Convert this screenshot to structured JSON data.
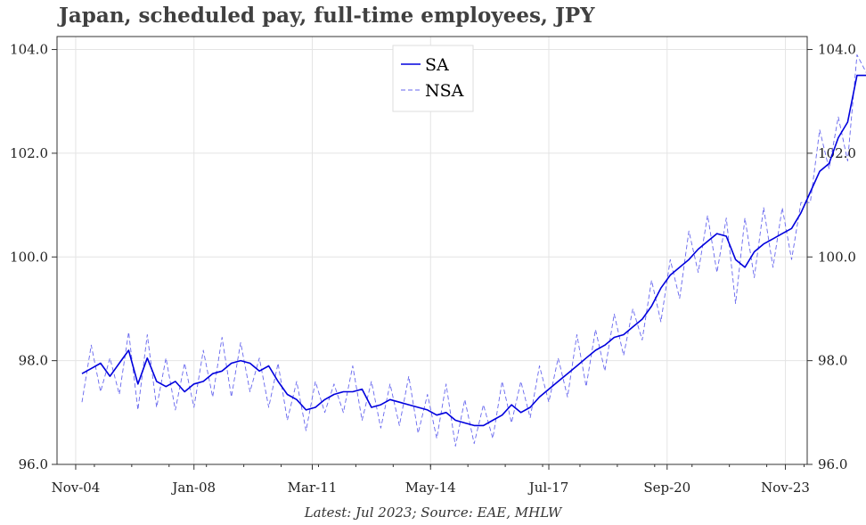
{
  "title": "Japan, scheduled pay, full-time employees, JPY",
  "footnote": "Latest: Jul 2023; Source: EAE, MHLW",
  "chart_data": {
    "type": "line",
    "title": "Japan, scheduled pay, full-time employees, JPY",
    "xlabel": "",
    "ylabel": "",
    "x_ticks": [
      "Nov-04",
      "Jan-08",
      "Mar-11",
      "May-14",
      "Jul-17",
      "Sep-20",
      "Nov-23"
    ],
    "y_ticks": [
      "96.0",
      "98.0",
      "100.0",
      "102.0",
      "104.0"
    ],
    "ylim": [
      96.0,
      104.25
    ],
    "xlim": [
      "2004-05",
      "2024-06"
    ],
    "grid": true,
    "legend_position": "top-center",
    "x_start": "2005-01",
    "x_step_months": 3,
    "series": [
      {
        "name": "SA",
        "color": "#0000dd",
        "style": "solid",
        "values": [
          97.75,
          97.85,
          97.95,
          97.7,
          97.95,
          98.2,
          97.55,
          98.05,
          97.6,
          97.5,
          97.6,
          97.4,
          97.55,
          97.6,
          97.75,
          97.8,
          97.95,
          98.0,
          97.95,
          97.8,
          97.9,
          97.6,
          97.35,
          97.25,
          97.05,
          97.1,
          97.25,
          97.35,
          97.4,
          97.4,
          97.45,
          97.1,
          97.15,
          97.25,
          97.2,
          97.15,
          97.1,
          97.05,
          96.95,
          97.0,
          96.85,
          96.8,
          96.75,
          96.75,
          96.85,
          96.95,
          97.15,
          97.0,
          97.1,
          97.3,
          97.45,
          97.6,
          97.75,
          97.9,
          98.05,
          98.2,
          98.3,
          98.45,
          98.5,
          98.65,
          98.8,
          99.05,
          99.4,
          99.65,
          99.8,
          99.95,
          100.15,
          100.3,
          100.45,
          100.4,
          99.95,
          99.8,
          100.1,
          100.25,
          100.35,
          100.45,
          100.55,
          100.85,
          101.25,
          101.65,
          101.8,
          102.3,
          102.6,
          103.5,
          103.5
        ]
      },
      {
        "name": "NSA",
        "color": "#6666ee",
        "style": "dashed",
        "values": [
          97.2,
          98.3,
          97.4,
          98.05,
          97.35,
          98.55,
          97.05,
          98.5,
          97.1,
          98.05,
          97.05,
          97.95,
          97.1,
          98.2,
          97.3,
          98.45,
          97.3,
          98.35,
          97.4,
          98.05,
          97.1,
          97.95,
          96.85,
          97.6,
          96.65,
          97.6,
          97.0,
          97.55,
          97.0,
          97.9,
          96.85,
          97.6,
          96.7,
          97.55,
          96.75,
          97.7,
          96.6,
          97.35,
          96.5,
          97.55,
          96.35,
          97.25,
          96.4,
          97.15,
          96.5,
          97.6,
          96.8,
          97.6,
          96.9,
          97.9,
          97.2,
          98.05,
          97.3,
          98.5,
          97.5,
          98.6,
          97.8,
          98.9,
          98.1,
          99.0,
          98.4,
          99.55,
          98.75,
          99.95,
          99.2,
          100.5,
          99.7,
          100.8,
          99.7,
          100.75,
          99.1,
          100.75,
          99.6,
          100.95,
          99.8,
          100.95,
          99.95,
          101.05,
          101.05,
          102.45,
          101.7,
          102.7,
          101.85,
          103.9,
          103.55
        ]
      }
    ]
  }
}
